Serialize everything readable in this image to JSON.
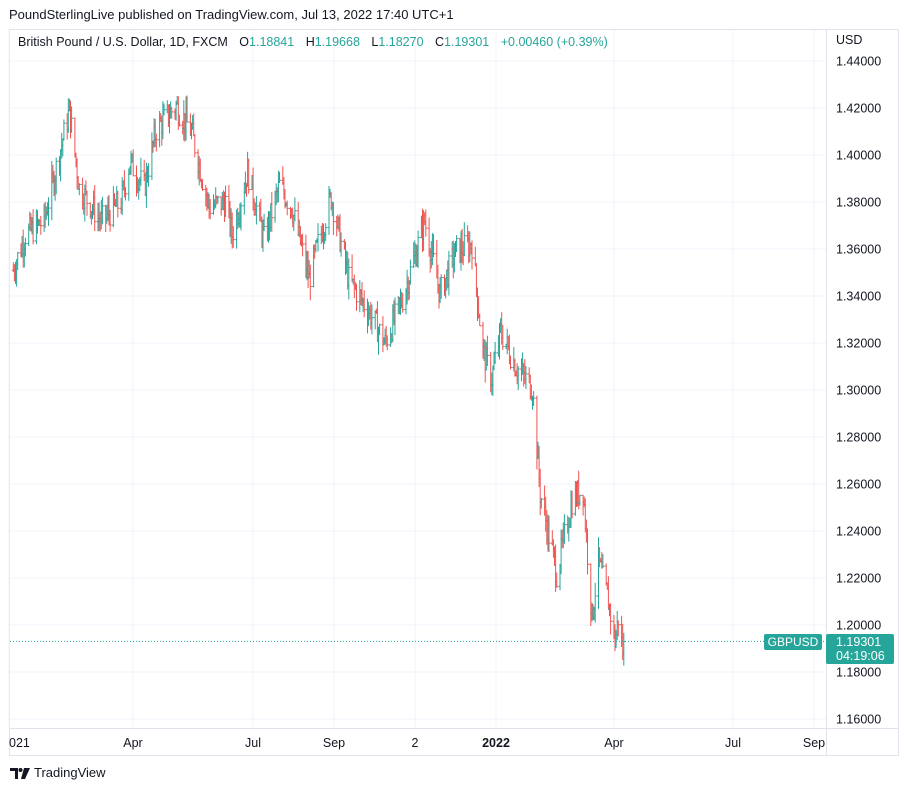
{
  "header": {
    "published": "PoundSterlingLive published on TradingView.com, Jul 13, 2022 17:40 UTC+1"
  },
  "legend": {
    "symbol": "British Pound / U.S. Dollar, 1D, FXCM",
    "o_label": "O",
    "o_value": "1.18841",
    "h_label": "H",
    "h_value": "1.19668",
    "l_label": "L",
    "l_value": "1.18270",
    "c_label": "C",
    "c_value": "1.19301",
    "change": "+0.00460 (+0.39%)"
  },
  "currency": "USD",
  "last_price": {
    "symbol_tag": "GBPUSD",
    "price": "1.19301",
    "countdown": "04:19:06"
  },
  "footer": {
    "brand": "TradingView"
  },
  "colors": {
    "up": "#26a69a",
    "down": "#ef5350",
    "grid": "#f0f3fa",
    "accent": "#26a69a"
  },
  "chart_data": {
    "type": "ohlc",
    "title": "British Pound / U.S. Dollar, 1D, FXCM",
    "ylim": [
      1.15,
      1.45
    ],
    "y_ticks": [
      "1.44000",
      "1.42000",
      "1.40000",
      "1.38000",
      "1.36000",
      "1.34000",
      "1.32000",
      "1.30000",
      "1.28000",
      "1.26000",
      "1.24000",
      "1.22000",
      "1.20000",
      "1.18000",
      "1.16000"
    ],
    "x_ticks": [
      {
        "label": "021",
        "bold": false
      },
      {
        "label": "Apr",
        "bold": false
      },
      {
        "label": "Jul",
        "bold": false
      },
      {
        "label": "Sep",
        "bold": false
      },
      {
        "label": "2",
        "bold": false
      },
      {
        "label": "2022",
        "bold": true
      },
      {
        "label": "Apr",
        "bold": false
      },
      {
        "label": "Jul",
        "bold": false
      },
      {
        "label": "Sep",
        "bold": false
      }
    ],
    "close_path": [
      {
        "date": "2021-01-04",
        "close": 1.351
      },
      {
        "date": "2021-01-15",
        "close": 1.366
      },
      {
        "date": "2021-02-01",
        "close": 1.372
      },
      {
        "date": "2021-02-24",
        "close": 1.419
      },
      {
        "date": "2021-03-05",
        "close": 1.386
      },
      {
        "date": "2021-03-25",
        "close": 1.372
      },
      {
        "date": "2021-04-12",
        "close": 1.38
      },
      {
        "date": "2021-04-20",
        "close": 1.397
      },
      {
        "date": "2021-05-03",
        "close": 1.386
      },
      {
        "date": "2021-05-14",
        "close": 1.411
      },
      {
        "date": "2021-06-01",
        "close": 1.421
      },
      {
        "date": "2021-06-15",
        "close": 1.41
      },
      {
        "date": "2021-07-01",
        "close": 1.378
      },
      {
        "date": "2021-07-16",
        "close": 1.38
      },
      {
        "date": "2021-07-22",
        "close": 1.366
      },
      {
        "date": "2021-08-05",
        "close": 1.393
      },
      {
        "date": "2021-08-20",
        "close": 1.364
      },
      {
        "date": "2021-09-03",
        "close": 1.387
      },
      {
        "date": "2021-09-14",
        "close": 1.378
      },
      {
        "date": "2021-09-30",
        "close": 1.347
      },
      {
        "date": "2021-10-08",
        "close": 1.362
      },
      {
        "date": "2021-10-20",
        "close": 1.382
      },
      {
        "date": "2021-11-05",
        "close": 1.347
      },
      {
        "date": "2021-11-24",
        "close": 1.333
      },
      {
        "date": "2021-12-08",
        "close": 1.32
      },
      {
        "date": "2021-12-24",
        "close": 1.339
      },
      {
        "date": "2022-01-13",
        "close": 1.372
      },
      {
        "date": "2022-01-27",
        "close": 1.341
      },
      {
        "date": "2022-02-10",
        "close": 1.359
      },
      {
        "date": "2022-02-25",
        "close": 1.362
      },
      {
        "date": "2022-03-07",
        "close": 1.316
      },
      {
        "date": "2022-03-15",
        "close": 1.305
      },
      {
        "date": "2022-03-23",
        "close": 1.325
      },
      {
        "date": "2022-04-06",
        "close": 1.31
      },
      {
        "date": "2022-04-14",
        "close": 1.305
      },
      {
        "date": "2022-04-21",
        "close": 1.301
      },
      {
        "date": "2022-04-28",
        "close": 1.256
      },
      {
        "date": "2022-05-13",
        "close": 1.222
      },
      {
        "date": "2022-05-27",
        "close": 1.253
      },
      {
        "date": "2022-06-06",
        "close": 1.258
      },
      {
        "date": "2022-06-14",
        "close": 1.203
      },
      {
        "date": "2022-06-20",
        "close": 1.227
      },
      {
        "date": "2022-06-29",
        "close": 1.21
      },
      {
        "date": "2022-07-05",
        "close": 1.193
      },
      {
        "date": "2022-07-08",
        "close": 1.203
      },
      {
        "date": "2022-07-12",
        "close": 1.189
      },
      {
        "date": "2022-07-13",
        "close": 1.193
      }
    ]
  }
}
